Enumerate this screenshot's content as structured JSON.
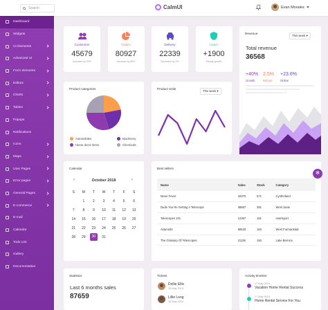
{
  "topbar": {
    "search_placeholder": "Search",
    "brand": "CalmUI",
    "user_name": "Evan Morales"
  },
  "sidebar": {
    "items": [
      {
        "label": "Dashboard",
        "active": true,
        "chev": false
      },
      {
        "label": "Widgets",
        "chev": false
      },
      {
        "label": "UI Elements",
        "chev": true
      },
      {
        "label": "Advanced UI",
        "chev": true
      },
      {
        "label": "Form elements",
        "chev": true
      },
      {
        "label": "Editors",
        "chev": true
      },
      {
        "label": "Charts",
        "chev": true
      },
      {
        "label": "Tables",
        "chev": true
      },
      {
        "label": "Popups",
        "chev": false
      },
      {
        "label": "Notifications",
        "chev": false
      },
      {
        "label": "Icons",
        "chev": true
      },
      {
        "label": "Maps",
        "chev": true
      },
      {
        "label": "User Pages",
        "chev": true
      },
      {
        "label": "Error pages",
        "chev": true
      },
      {
        "label": "General Pages",
        "chev": true
      },
      {
        "label": "E-commerce",
        "chev": true
      },
      {
        "label": "E-mail",
        "chev": false
      },
      {
        "label": "Calendar",
        "chev": false
      },
      {
        "label": "Todo List",
        "chev": false
      },
      {
        "label": "Gallery",
        "chev": false
      },
      {
        "label": "Documentation",
        "chev": false
      }
    ]
  },
  "stats": [
    {
      "label": "Customers",
      "value": "45679",
      "sub": "Increase by 20%",
      "color": "#8e3bb0"
    },
    {
      "label": "Orders",
      "value": "80927",
      "sub": "Increase by 60%",
      "color": "#fe7c58"
    },
    {
      "label": "Delivery",
      "value": "22339",
      "sub": "Decrease by 2%",
      "color": "#5b4cc4"
    },
    {
      "label": "Users",
      "value": "+1900",
      "sub": "Steady growth",
      "color": "#1bcfb4"
    }
  ],
  "revenue": {
    "title": "Revenue",
    "range": "This week",
    "total_label": "Total revenue",
    "total": "36568",
    "metrics": [
      {
        "value": "+40%",
        "label": "Growth",
        "color": "#8e3bb0"
      },
      {
        "value": "2.5%",
        "label": "Refund",
        "color": "#fe7c58"
      },
      {
        "value": "+23.6%",
        "label": "Online",
        "color": "#5b4cc4"
      }
    ]
  },
  "categories": {
    "title": "Product categories",
    "slices": [
      {
        "name": "Automobiles",
        "value": 22,
        "color": "#fe9e4a"
      },
      {
        "name": "Machinery",
        "value": 23,
        "color": "#6f2fa8"
      },
      {
        "name": "Home decor items",
        "value": 30,
        "color": "#8e3bb0"
      },
      {
        "name": "Chemicals",
        "value": 25,
        "color": "#a8a0b3"
      }
    ]
  },
  "visits": {
    "title": "Product visits",
    "range": "This week",
    "values": [
      3,
      8,
      6,
      1,
      7,
      4,
      9,
      5
    ]
  },
  "calendar": {
    "title": "Calendar",
    "month": "October 2018",
    "weekdays": [
      "S",
      "M",
      "T",
      "W",
      "T",
      "F",
      "S"
    ],
    "weeks": [
      [
        "",
        "1",
        "2",
        "3",
        "4",
        "5",
        "6"
      ],
      [
        "7",
        "8",
        "9",
        "10",
        "11",
        "12",
        "13"
      ],
      [
        "14",
        "15",
        "16",
        "17",
        "18",
        "19",
        "20"
      ],
      [
        "21",
        "22",
        "23",
        "24",
        "25",
        "26",
        "27"
      ],
      [
        "28",
        "29",
        "30",
        "31",
        "",
        "",
        ""
      ]
    ],
    "selected": "30"
  },
  "best": {
    "title": "Best sellers",
    "headers": [
      "Name",
      "Sales",
      "Stock",
      "Category"
    ],
    "rows": [
      [
        "Moon Fever",
        "42070",
        "571",
        "Cyntholand"
      ],
      [
        "Dude You Re Getting A Telescope",
        "38867",
        "381",
        "West Janie"
      ],
      [
        "Telescopes 101",
        "12367",
        "181",
        "Harrisport"
      ],
      [
        "Asteroids",
        "68533",
        "183",
        "West Furmanstad"
      ],
      [
        "The Glossary Of Telescopes",
        "21136",
        "193",
        "Lake Bernice"
      ]
    ]
  },
  "statistics": {
    "title": "Statistics",
    "caption": "Last 6 months sales",
    "value": "87659"
  },
  "tickets": {
    "title": "Tickets",
    "items": [
      {
        "name": "Dollie Ellis",
        "date": "15 May 2019"
      },
      {
        "name": "Lillie Long",
        "date": "15 May 2019"
      }
    ]
  },
  "activity": {
    "title": "Activity timeline",
    "items": [
      {
        "date": "17 May 2019",
        "text": "Vacation Home Rental Success"
      },
      {
        "date": "17 May 2019",
        "text": "Home Rental Service For You"
      }
    ]
  }
}
